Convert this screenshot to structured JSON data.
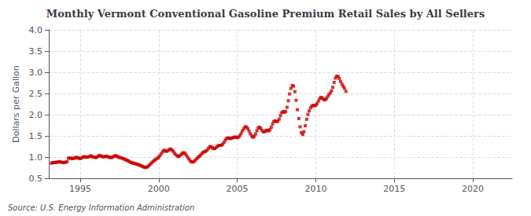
{
  "chart_data": {
    "type": "scatter",
    "title": "Monthly Vermont Conventional Gasoline Premium Retail Sales by All Sellers",
    "ylabel": "Dollars per Gallon",
    "source": "Source: U.S. Energy Information Administration",
    "color": "#cc0000",
    "marker": "square",
    "grid": true,
    "xlim": [
      1993.0,
      2022.5
    ],
    "xticks": [
      1995,
      2000,
      2005,
      2010,
      2015,
      2020
    ],
    "ylim": [
      0.5,
      4.0
    ],
    "yticks": [
      0.5,
      {
        "value": 1.0,
        "label": "1.0"
      },
      1.5,
      {
        "value": 2.0,
        "label": "2.0"
      },
      2.5,
      {
        "value": 3.0,
        "label": "3.0"
      },
      3.5,
      {
        "value": 4.0,
        "label": "4.0"
      }
    ],
    "x": [
      1993.17,
      1993.25,
      1993.33,
      1993.42,
      1993.5,
      1993.58,
      1993.67,
      1993.75,
      1993.83,
      1993.92,
      1994.0,
      1994.08,
      1994.17,
      1994.25,
      1994.33,
      1994.42,
      1994.5,
      1994.58,
      1994.67,
      1994.75,
      1994.83,
      1994.92,
      1995.0,
      1995.08,
      1995.17,
      1995.25,
      1995.33,
      1995.42,
      1995.5,
      1995.58,
      1995.67,
      1995.75,
      1995.83,
      1995.92,
      1996.0,
      1996.08,
      1996.17,
      1996.25,
      1996.33,
      1996.42,
      1996.5,
      1996.58,
      1996.67,
      1996.75,
      1996.83,
      1996.92,
      1997.0,
      1997.08,
      1997.17,
      1997.25,
      1997.33,
      1997.42,
      1997.5,
      1997.58,
      1997.67,
      1997.75,
      1997.83,
      1997.92,
      1998.0,
      1998.08,
      1998.17,
      1998.25,
      1998.33,
      1998.42,
      1998.5,
      1998.58,
      1998.67,
      1998.75,
      1998.83,
      1998.92,
      1999.0,
      1999.08,
      1999.17,
      1999.25,
      1999.33,
      1999.42,
      1999.5,
      1999.58,
      1999.67,
      1999.75,
      1999.83,
      1999.92,
      2000.0,
      2000.08,
      2000.17,
      2000.25,
      2000.33,
      2000.42,
      2000.5,
      2000.58,
      2000.67,
      2000.75,
      2000.83,
      2000.92,
      2001.0,
      2001.08,
      2001.17,
      2001.25,
      2001.33,
      2001.42,
      2001.5,
      2001.58,
      2001.67,
      2001.75,
      2001.83,
      2001.92,
      2002.0,
      2002.08,
      2002.17,
      2002.25,
      2002.33,
      2002.42,
      2002.5,
      2002.58,
      2002.67,
      2002.75,
      2002.83,
      2002.92,
      2003.0,
      2003.08,
      2003.17,
      2003.25,
      2003.33,
      2003.42,
      2003.5,
      2003.58,
      2003.67,
      2003.75,
      2003.83,
      2003.92,
      2004.0,
      2004.08,
      2004.17,
      2004.25,
      2004.33,
      2004.42,
      2004.5,
      2004.58,
      2004.67,
      2004.75,
      2004.83,
      2004.92,
      2005.0,
      2005.08,
      2005.17,
      2005.25,
      2005.33,
      2005.42,
      2005.5,
      2005.58,
      2005.67,
      2005.75,
      2005.83,
      2005.92,
      2006.0,
      2006.08,
      2006.17,
      2006.25,
      2006.33,
      2006.42,
      2006.5,
      2006.58,
      2006.67,
      2006.75,
      2006.83,
      2006.92,
      2007.0,
      2007.08,
      2007.17,
      2007.25,
      2007.33,
      2007.42,
      2007.5,
      2007.58,
      2007.67,
      2007.75,
      2007.83,
      2007.92,
      2008.0,
      2008.08,
      2008.17,
      2008.25,
      2008.33,
      2008.42,
      2008.5,
      2008.58,
      2008.67,
      2008.75,
      2008.83,
      2008.92,
      2009.0,
      2009.08,
      2009.17,
      2009.25,
      2009.33,
      2009.42,
      2009.5,
      2009.58,
      2009.67,
      2009.75,
      2009.83,
      2009.92,
      2010.0,
      2010.08,
      2010.17,
      2010.25,
      2010.33,
      2010.42,
      2010.5,
      2010.58,
      2010.67,
      2010.75,
      2010.83,
      2010.92,
      2011.0,
      2011.08,
      2011.17,
      2011.25,
      2011.33,
      2011.42,
      2011.5,
      2011.58,
      2011.67,
      2011.75,
      2011.83,
      2011.92
    ],
    "values": [
      0.857,
      0.87,
      0.871,
      0.872,
      0.878,
      0.885,
      0.892,
      0.884,
      0.878,
      0.87,
      0.87,
      0.882,
      0.895,
      0.975,
      0.978,
      0.972,
      0.965,
      0.968,
      0.982,
      0.995,
      0.985,
      0.972,
      0.965,
      0.98,
      0.998,
      1.012,
      1.002,
      0.995,
      1.002,
      1.015,
      1.028,
      1.015,
      1.002,
      0.995,
      0.988,
      1.005,
      1.025,
      1.038,
      1.025,
      1.012,
      1.005,
      1.012,
      1.022,
      1.012,
      0.998,
      0.988,
      0.988,
      1.005,
      1.022,
      1.035,
      1.02,
      1.005,
      0.992,
      0.985,
      0.975,
      0.962,
      0.948,
      0.936,
      0.922,
      0.905,
      0.885,
      0.872,
      0.862,
      0.852,
      0.845,
      0.836,
      0.828,
      0.815,
      0.802,
      0.788,
      0.775,
      0.762,
      0.755,
      0.765,
      0.785,
      0.812,
      0.845,
      0.878,
      0.905,
      0.93,
      0.952,
      0.972,
      0.998,
      1.035,
      1.082,
      1.128,
      1.162,
      1.145,
      1.135,
      1.152,
      1.175,
      1.192,
      1.172,
      1.138,
      1.098,
      1.058,
      1.028,
      1.012,
      1.028,
      1.058,
      1.088,
      1.105,
      1.085,
      1.048,
      1.005,
      0.958,
      0.915,
      0.888,
      0.882,
      0.898,
      0.928,
      0.962,
      0.992,
      1.018,
      1.048,
      1.082,
      1.112,
      1.128,
      1.138,
      1.162,
      1.205,
      1.248,
      1.248,
      1.218,
      1.198,
      1.205,
      1.232,
      1.258,
      1.275,
      1.278,
      1.282,
      1.308,
      1.352,
      1.405,
      1.445,
      1.452,
      1.442,
      1.438,
      1.448,
      1.462,
      1.472,
      1.468,
      1.458,
      1.472,
      1.508,
      1.562,
      1.622,
      1.672,
      1.712,
      1.712,
      1.672,
      1.615,
      1.552,
      1.498,
      1.468,
      1.488,
      1.545,
      1.622,
      1.688,
      1.705,
      1.675,
      1.628,
      1.595,
      1.598,
      1.625,
      1.632,
      1.618,
      1.645,
      1.705,
      1.782,
      1.842,
      1.855,
      1.838,
      1.842,
      1.892,
      1.975,
      2.048,
      2.075,
      2.055,
      2.075,
      2.175,
      2.328,
      2.488,
      2.618,
      2.688,
      2.672,
      2.542,
      2.338,
      2.118,
      1.908,
      1.715,
      1.578,
      1.532,
      1.598,
      1.738,
      1.892,
      2.005,
      2.088,
      2.162,
      2.205,
      2.218,
      2.215,
      2.222,
      2.262,
      2.322,
      2.378,
      2.408,
      2.392,
      2.358,
      2.348,
      2.375,
      2.422,
      2.472,
      2.512,
      2.562,
      2.645,
      2.762,
      2.862,
      2.908,
      2.902,
      2.852,
      2.782,
      2.718,
      2.668,
      2.618,
      2.548
    ]
  }
}
